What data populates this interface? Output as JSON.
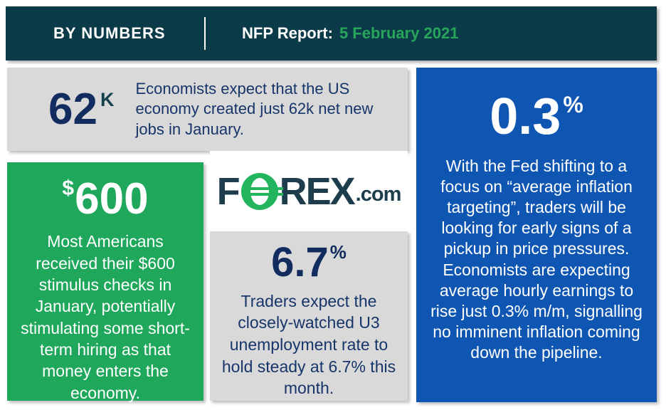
{
  "header": {
    "title": "BY NUMBERS",
    "report_label": "NFP Report:",
    "report_date": "5 February 2021"
  },
  "logo": {
    "f": "F",
    "rex": "REX",
    "com": ".com"
  },
  "cards": {
    "jobs": {
      "value": "62",
      "unit": "K",
      "text": "Economists expect that the US economy created just 62k net new jobs in January."
    },
    "stimulus": {
      "prefix": "$",
      "value": "600",
      "text": "Most Americans received their $600 stimulus checks in January, potentially stimulating some short-term hiring as that money enters the economy."
    },
    "unemployment": {
      "value": "6.7",
      "unit": "%",
      "text": "Traders expect the closely-watched U3 unemployment rate to hold steady at 6.7% this month."
    },
    "earnings": {
      "value": "0.3",
      "unit": "%",
      "text": "With the Fed shifting to a focus on “average inflation targeting”, traders will be looking for early signs of a pickup in price pressures. Economists are expecting average hourly earnings to rise just 0.3% m/m, signalling no imminent inflation coming down the pipeline."
    }
  },
  "colors": {
    "header_bg": "#0b3a49",
    "accent_green": "#1fa75c",
    "accent_blue": "#0e56b2",
    "card_gray": "#d9d9d9",
    "navy_text": "#17356b",
    "date_green": "#27a65b",
    "logo_teal": "#1d3d4d",
    "logo_green": "#22b55e"
  }
}
